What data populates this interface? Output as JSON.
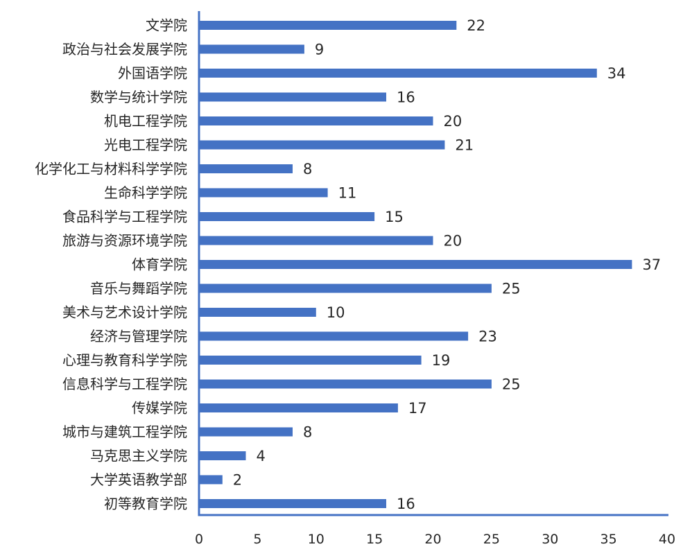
{
  "chart_data": {
    "type": "bar",
    "orientation": "horizontal",
    "title": "",
    "xlabel": "",
    "ylabel": "",
    "categories": [
      "文学院",
      "政治与社会发展学院",
      "外国语学院",
      "数学与统计学院",
      "机电工程学院",
      "光电工程学院",
      "化学化工与材料科学学院",
      "生命科学学院",
      "食品科学与工程学院",
      "旅游与资源环境学院",
      "体育学院",
      "音乐与舞蹈学院",
      "美术与艺术设计学院",
      "经济与管理学院",
      "心理与教育科学学院",
      "信息科学与工程学院",
      "传媒学院",
      "城市与建筑工程学院",
      "马克思主义学院",
      "大学英语教学部",
      "初等教育学院"
    ],
    "values": [
      22,
      9,
      34,
      16,
      20,
      21,
      8,
      11,
      15,
      20,
      37,
      25,
      10,
      23,
      19,
      25,
      17,
      8,
      4,
      2,
      16
    ],
    "value_labels": [
      "22",
      "9",
      "34",
      "16",
      "20",
      "21",
      "8",
      "11",
      "15",
      "20",
      "37",
      "25",
      "10",
      "23",
      "19",
      "25",
      "17",
      "8",
      "4",
      "2",
      "16"
    ],
    "xlim": [
      0,
      40
    ],
    "x_ticks": [
      0,
      5,
      10,
      15,
      20,
      25,
      30,
      35,
      40
    ],
    "x_tick_labels": [
      "0",
      "5",
      "10",
      "15",
      "20",
      "25",
      "30",
      "35",
      "40"
    ],
    "grid": false,
    "legend": "none",
    "colors": {
      "bar": "#4472C4",
      "axis": "#4472C4",
      "text": "#262626"
    }
  }
}
